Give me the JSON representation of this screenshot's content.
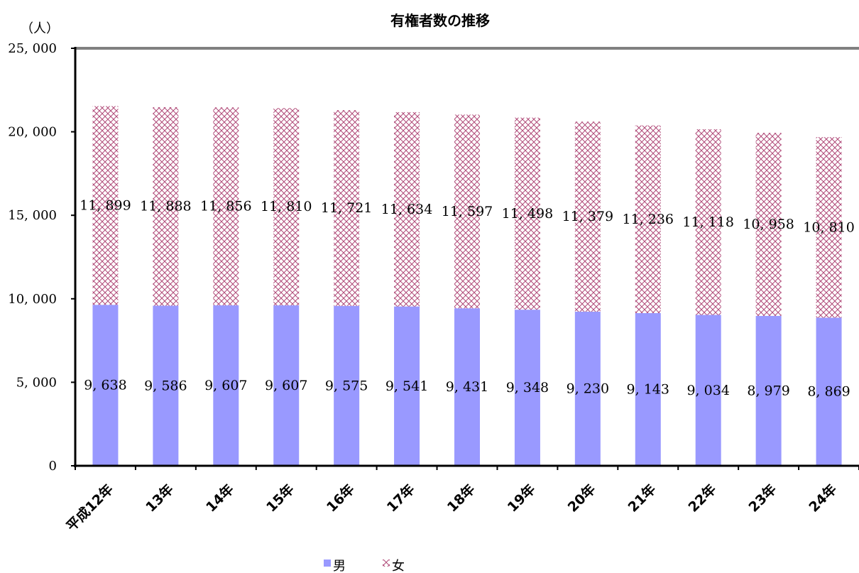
{
  "chart_data": {
    "type": "bar",
    "stacked": true,
    "title": "有権者数の推移",
    "unit_label": "（人）",
    "categories": [
      "平成12年",
      "13年",
      "14年",
      "15年",
      "16年",
      "17年",
      "18年",
      "19年",
      "20年",
      "21年",
      "22年",
      "23年",
      "24年"
    ],
    "series": [
      {
        "name": "男",
        "color": "#9999ff",
        "pattern": "solid",
        "values": [
          9638,
          9586,
          9607,
          9607,
          9575,
          9541,
          9431,
          9348,
          9230,
          9143,
          9034,
          8979,
          8869
        ],
        "labels": [
          "9, 638",
          "9, 586",
          "9, 607",
          "9, 607",
          "9, 575",
          "9, 541",
          "9, 431",
          "9, 348",
          "9, 230",
          "9, 143",
          "9, 034",
          "8, 979",
          "8, 869"
        ]
      },
      {
        "name": "女",
        "color": "#993366",
        "pattern": "crosshatch",
        "values": [
          11899,
          11888,
          11856,
          11810,
          11721,
          11634,
          11597,
          11498,
          11379,
          11236,
          11118,
          10958,
          10810
        ],
        "labels": [
          "11, 899",
          "11, 888",
          "11, 856",
          "11, 810",
          "11, 721",
          "11, 634",
          "11, 597",
          "11, 498",
          "11, 379",
          "11, 236",
          "11, 118",
          "10, 958",
          "10, 810"
        ]
      }
    ],
    "ylim": [
      0,
      25000
    ],
    "yticks": [
      0,
      5000,
      10000,
      15000,
      20000,
      25000
    ],
    "ytick_labels": [
      "0",
      "5, 000",
      "10, 000",
      "15, 000",
      "20, 000",
      "25, 000"
    ],
    "grid": false,
    "legend_position": "bottom"
  }
}
